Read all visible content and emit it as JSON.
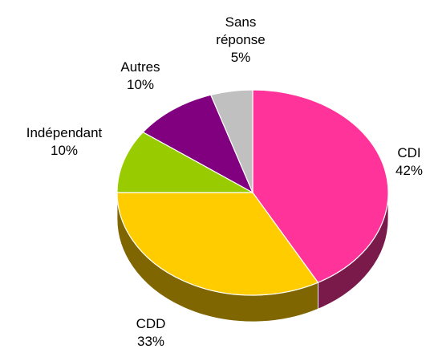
{
  "chart_data": {
    "type": "pie",
    "categories": [
      "CDI",
      "CDD",
      "Indépendant",
      "Autres",
      "Sans réponse"
    ],
    "values": [
      42,
      33,
      10,
      10,
      5
    ],
    "value_labels": [
      "42%",
      "33%",
      "10%",
      "10%",
      "5%"
    ],
    "colors": [
      "#ff3399",
      "#ffcc00",
      "#99cc00",
      "#800080",
      "#c0c0c0"
    ],
    "side_colors": [
      "#7a1a4a",
      "#806600",
      "#4d6600",
      "#400040",
      "#606060"
    ]
  }
}
